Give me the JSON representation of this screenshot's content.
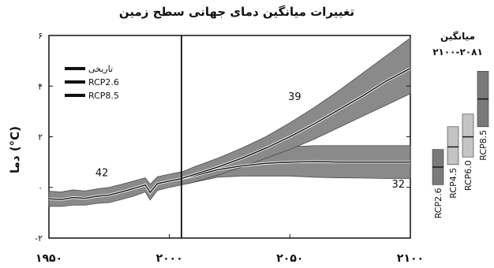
{
  "chart_data": {
    "type": "line",
    "title": "تغییرات میانگین دمای جهانی سطح زمین",
    "ylabel": "دما (°C)",
    "xlim": [
      1950,
      2100
    ],
    "ylim": [
      -2,
      6
    ],
    "x_ticks": [
      1950,
      2000,
      2050,
      2100
    ],
    "x_tick_labels": [
      "۱۹۵۰",
      "۲۰۰۰",
      "۲۰۵۰",
      "۲۱۰۰"
    ],
    "y_ticks": [
      -2,
      0,
      2,
      4,
      6
    ],
    "y_tick_labels": [
      "-۲",
      "۰",
      "۲",
      "۴",
      "۶"
    ],
    "vline_x": 2005,
    "legend_position": "top-left",
    "legend": [
      "تاریخی",
      "RCP2.6",
      "RCP8.5"
    ],
    "colors": {
      "band": "#8a8a8a",
      "band_edge": "#4a4a4a",
      "line": "#111111",
      "box": "#7a7a7a",
      "box_light": "#c4c4c4"
    },
    "series": [
      {
        "name": "تاریخی",
        "x": [
          1950,
          1955,
          1960,
          1965,
          1970,
          1975,
          1980,
          1985,
          1990,
          1992,
          1995,
          2000,
          2005
        ],
        "y": [
          -0.45,
          -0.48,
          -0.4,
          -0.43,
          -0.35,
          -0.3,
          -0.18,
          -0.05,
          0.1,
          -0.2,
          0.15,
          0.25,
          0.35
        ],
        "lower": [
          -0.75,
          -0.75,
          -0.7,
          -0.7,
          -0.63,
          -0.6,
          -0.48,
          -0.35,
          -0.18,
          -0.5,
          -0.12,
          0.0,
          0.1
        ],
        "upper": [
          -0.15,
          -0.18,
          -0.1,
          -0.14,
          -0.06,
          0.0,
          0.12,
          0.25,
          0.38,
          0.12,
          0.42,
          0.52,
          0.62
        ],
        "count_label": "42"
      },
      {
        "name": "RCP2.6",
        "x": [
          2005,
          2010,
          2020,
          2030,
          2040,
          2050,
          2060,
          2070,
          2080,
          2090,
          2100
        ],
        "y": [
          0.35,
          0.45,
          0.7,
          0.85,
          0.95,
          1.0,
          1.02,
          1.0,
          1.0,
          1.0,
          1.0
        ],
        "lower": [
          0.1,
          0.2,
          0.4,
          0.45,
          0.45,
          0.45,
          0.4,
          0.38,
          0.37,
          0.35,
          0.35
        ],
        "upper": [
          0.6,
          0.72,
          1.05,
          1.3,
          1.5,
          1.6,
          1.65,
          1.65,
          1.65,
          1.65,
          1.65
        ],
        "count_label": "32"
      },
      {
        "name": "RCP8.5",
        "x": [
          2005,
          2010,
          2020,
          2030,
          2040,
          2050,
          2060,
          2070,
          2080,
          2090,
          2100
        ],
        "y": [
          0.35,
          0.5,
          0.8,
          1.15,
          1.55,
          2.0,
          2.5,
          3.05,
          3.6,
          4.2,
          4.7
        ],
        "lower": [
          0.1,
          0.2,
          0.48,
          0.8,
          1.15,
          1.5,
          1.9,
          2.35,
          2.8,
          3.25,
          3.7
        ],
        "upper": [
          0.6,
          0.8,
          1.15,
          1.55,
          2.0,
          2.55,
          3.15,
          3.8,
          4.5,
          5.2,
          5.9
        ],
        "count_label": "39"
      }
    ],
    "side_panel": {
      "title": "میانگین",
      "subtitle": "۲۱۰۰-۲۰۸۱",
      "boxes": [
        {
          "name": "RCP2.6",
          "low": 0.3,
          "mean": 1.0,
          "high": 1.7
        },
        {
          "name": "RCP4.5",
          "low": 1.1,
          "mean": 1.8,
          "high": 2.6
        },
        {
          "name": "RCP6.0",
          "low": 1.4,
          "mean": 2.2,
          "high": 3.1
        },
        {
          "name": "RCP8.5",
          "low": 2.6,
          "mean": 3.7,
          "high": 4.8
        }
      ]
    }
  }
}
